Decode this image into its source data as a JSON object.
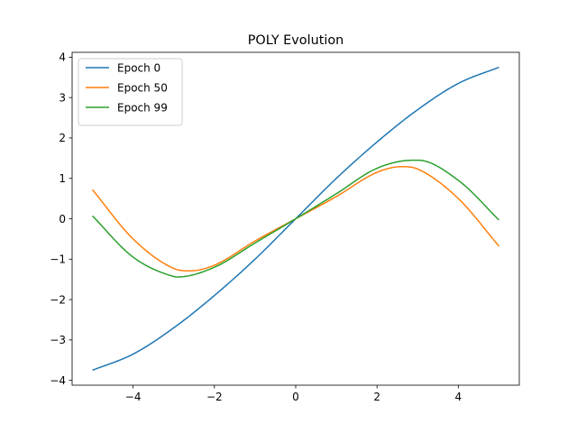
{
  "chart_data": {
    "type": "line",
    "title": "POLY Evolution",
    "xlabel": "",
    "ylabel": "",
    "xlim": [
      -5.5,
      5.5
    ],
    "ylim": [
      -4.12,
      4.12
    ],
    "xticks": [
      -4,
      -2,
      0,
      2,
      4
    ],
    "xtick_labels": [
      "−4",
      "−2",
      "0",
      "2",
      "4"
    ],
    "yticks": [
      -4,
      -3,
      -2,
      -1,
      0,
      1,
      2,
      3,
      4
    ],
    "ytick_labels": [
      "−4",
      "−3",
      "−2",
      "−1",
      "0",
      "1",
      "2",
      "3",
      "4"
    ],
    "grid": false,
    "legend_position": "upper-left",
    "series": [
      {
        "name": "Epoch 0",
        "color": "#1f77b4",
        "x": [
          -5,
          -4,
          -3,
          -2,
          -1,
          0,
          1,
          2,
          3,
          4,
          5
        ],
        "y": [
          -3.75,
          -3.35,
          -2.7,
          -1.9,
          -1.0,
          0.0,
          1.0,
          1.9,
          2.7,
          3.35,
          3.75
        ]
      },
      {
        "name": "Epoch 50",
        "color": "#ff7f0e",
        "x": [
          -5,
          -4,
          -3,
          -2.6,
          -2,
          -1,
          0,
          1,
          2,
          2.6,
          3,
          4,
          5
        ],
        "y": [
          0.72,
          -0.5,
          -1.23,
          -1.29,
          -1.15,
          -0.55,
          0.0,
          0.55,
          1.15,
          1.29,
          1.23,
          0.5,
          -0.68
        ]
      },
      {
        "name": "Epoch 99",
        "color": "#2ca02c",
        "x": [
          -5,
          -4,
          -3,
          -2.9,
          -2,
          -1,
          0,
          1,
          2,
          2.9,
          3,
          4,
          5
        ],
        "y": [
          0.07,
          -0.95,
          -1.43,
          -1.44,
          -1.2,
          -0.6,
          0.0,
          0.62,
          1.25,
          1.45,
          1.45,
          0.95,
          -0.03
        ]
      }
    ]
  }
}
